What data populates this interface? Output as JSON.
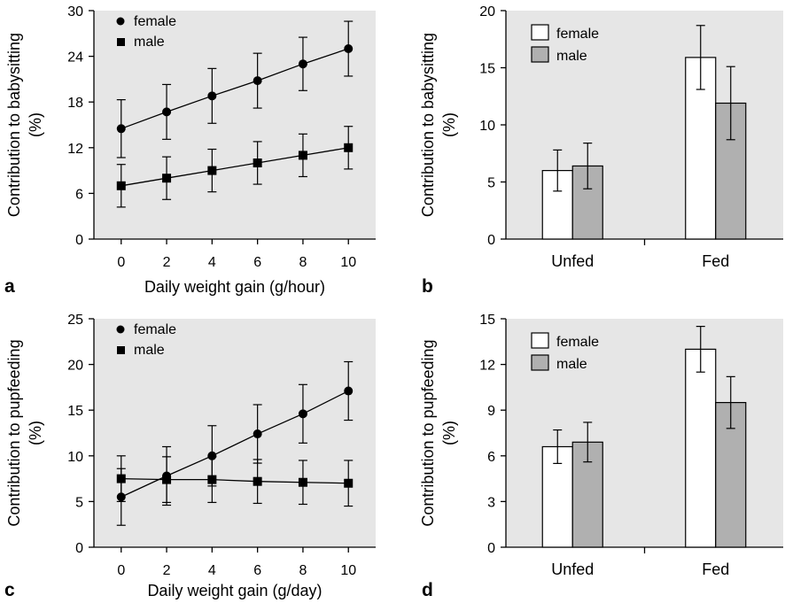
{
  "chart_data": [
    {
      "panel_label": "a",
      "type": "line",
      "x": [
        0,
        2,
        4,
        6,
        8,
        10
      ],
      "xticks": [
        "0",
        "2",
        "4",
        "6",
        "8",
        "10"
      ],
      "yticks": [
        "0",
        "6",
        "12",
        "18",
        "24",
        "30"
      ],
      "ylim": [
        0,
        30
      ],
      "xlim": [
        -1.2,
        11.2
      ],
      "xlabel": "Daily weight gain (g/hour)",
      "ylabel": [
        "Contribution to babysitting",
        "(%)"
      ],
      "legend_position": "top-left",
      "series": [
        {
          "name": "female",
          "marker": "circle",
          "values": [
            14.5,
            16.7,
            18.8,
            20.8,
            23.0,
            25.0
          ],
          "err": [
            3.8,
            3.6,
            3.6,
            3.6,
            3.5,
            3.6
          ]
        },
        {
          "name": "male",
          "marker": "square",
          "values": [
            7.0,
            8.0,
            9.0,
            10.0,
            11.0,
            12.0
          ],
          "err": [
            2.8,
            2.8,
            2.8,
            2.8,
            2.8,
            2.8
          ]
        }
      ]
    },
    {
      "panel_label": "b",
      "type": "bar",
      "categories": [
        "Unfed",
        "Fed"
      ],
      "yticks": [
        "0",
        "5",
        "10",
        "15",
        "20"
      ],
      "ylim": [
        0,
        20
      ],
      "ylabel": [
        "Contribution to babysitting",
        "(%)"
      ],
      "legend_position": "top-left",
      "series": [
        {
          "name": "female",
          "color": "#ffffff",
          "values": [
            6.0,
            15.9
          ],
          "err": [
            1.8,
            2.8
          ]
        },
        {
          "name": "male",
          "color": "#b0b0b0",
          "values": [
            6.4,
            11.9
          ],
          "err": [
            2.0,
            3.2
          ]
        }
      ]
    },
    {
      "panel_label": "c",
      "type": "line",
      "x": [
        0,
        2,
        4,
        6,
        8,
        10
      ],
      "xticks": [
        "0",
        "2",
        "4",
        "6",
        "8",
        "10"
      ],
      "yticks": [
        "0",
        "5",
        "10",
        "15",
        "20",
        "25"
      ],
      "ylim": [
        0,
        25
      ],
      "xlim": [
        -1.2,
        11.2
      ],
      "xlabel": "Daily weight gain (g/day)",
      "ylabel": [
        "Contribution to pupfeeding",
        "(%)"
      ],
      "legend_position": "top-left",
      "series": [
        {
          "name": "female",
          "marker": "circle",
          "values": [
            5.5,
            7.8,
            10.0,
            12.4,
            14.6,
            17.1
          ],
          "err": [
            3.1,
            3.2,
            3.3,
            3.2,
            3.2,
            3.2
          ]
        },
        {
          "name": "male",
          "marker": "square",
          "values": [
            7.5,
            7.4,
            7.4,
            7.2,
            7.1,
            7.0
          ],
          "err": [
            2.5,
            2.5,
            2.5,
            2.4,
            2.4,
            2.5
          ]
        }
      ]
    },
    {
      "panel_label": "d",
      "type": "bar",
      "categories": [
        "Unfed",
        "Fed"
      ],
      "yticks": [
        "0",
        "3",
        "6",
        "9",
        "12",
        "15"
      ],
      "ylim": [
        0,
        15
      ],
      "ylabel": [
        "Contribution to pupfeeding",
        "(%)"
      ],
      "legend_position": "top-left",
      "series": [
        {
          "name": "female",
          "color": "#ffffff",
          "values": [
            6.6,
            13.0
          ],
          "err": [
            1.1,
            1.5
          ]
        },
        {
          "name": "male",
          "color": "#b0b0b0",
          "values": [
            6.9,
            9.5
          ],
          "err": [
            1.3,
            1.7
          ]
        }
      ]
    }
  ]
}
